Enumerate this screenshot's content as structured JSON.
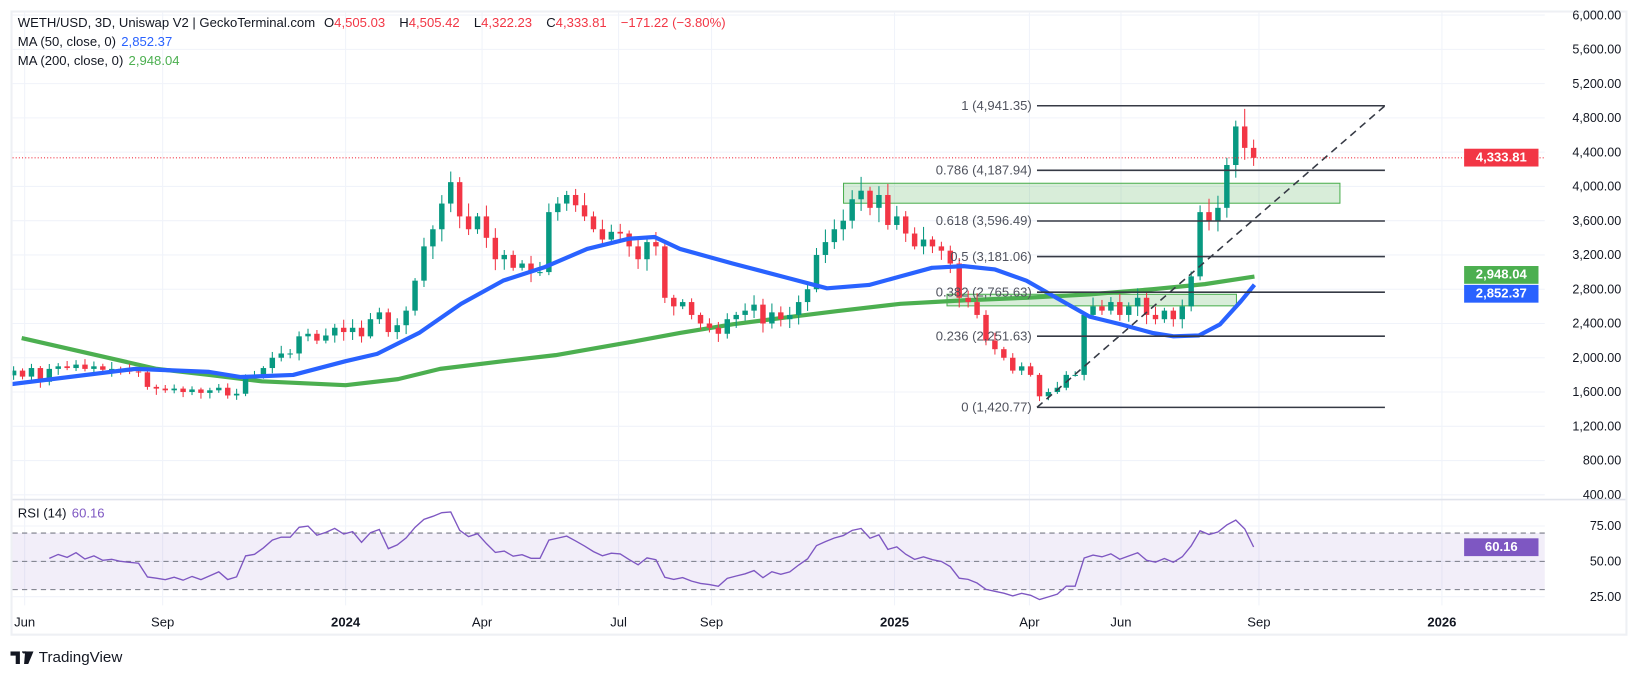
{
  "header": {
    "symbol": "WETH/USD, 3D, Uniswap V2 | GeckoTerminal.com",
    "o_label": "O",
    "o": "4,505.03",
    "h_label": "H",
    "h": "4,505.42",
    "l_label": "L",
    "l": "4,322.23",
    "c_label": "C",
    "c": "4,333.81",
    "change": "−171.22 (−3.80%)"
  },
  "indicators": {
    "ma50": {
      "label": "MA (50, close, 0)",
      "value": "2,852.37"
    },
    "ma200": {
      "label": "MA (200, close, 0)",
      "value": "2,948.04"
    },
    "rsi": {
      "label": "RSI (14)",
      "value": "60.16"
    }
  },
  "branding": {
    "logo_text": "TradingView"
  },
  "colors": {
    "up": "#089981",
    "down": "#f23645",
    "ma50": "#2962ff",
    "ma200": "#4caf50",
    "rsi": "#7e57c2",
    "fib": "#363a45",
    "zone": "#4caf50"
  },
  "chart_data": [
    {
      "type": "candlestick",
      "title": "WETH/USD, 3D, Uniswap V2",
      "y_ticks": [
        "6,000.00",
        "5,600.00",
        "5,200.00",
        "4,800.00",
        "4,400.00",
        "4,000.00",
        "3,600.00",
        "3,200.00",
        "2,800.00",
        "2,400.00",
        "2,000.00",
        "1,600.00",
        "1,200.00",
        "800.00",
        "400.00"
      ],
      "y_tick_values": [
        6000,
        5600,
        5200,
        4800,
        4400,
        4000,
        3600,
        3200,
        2800,
        2400,
        2000,
        1600,
        1200,
        800,
        400
      ],
      "ylim": [
        400,
        6000
      ],
      "x_ticks": [
        {
          "label": "Jun",
          "date": "2023-06-01",
          "bold": false
        },
        {
          "label": "Sep",
          "date": "2023-09-01",
          "bold": false
        },
        {
          "label": "2024",
          "date": "2024-01-01",
          "bold": true
        },
        {
          "label": "Apr",
          "date": "2024-04-01",
          "bold": false
        },
        {
          "label": "Jul",
          "date": "2024-07-01",
          "bold": false
        },
        {
          "label": "Sep",
          "date": "2024-09-01",
          "bold": false
        },
        {
          "label": "2025",
          "date": "2025-01-01",
          "bold": true
        },
        {
          "label": "Apr",
          "date": "2025-04-01",
          "bold": false
        },
        {
          "label": "Jun",
          "date": "2025-06-01",
          "bold": false
        },
        {
          "label": "Sep",
          "date": "2025-09-01",
          "bold": false
        },
        {
          "label": "2026",
          "date": "2026-01-01",
          "bold": true
        }
      ],
      "last_price": 4333.81,
      "last_price_label": "4,333.81",
      "closes": [
        1850,
        1780,
        1880,
        1720,
        1870,
        1900,
        1880,
        1920,
        1870,
        1900,
        1860,
        1870,
        1850,
        1840,
        1830,
        1660,
        1640,
        1620,
        1640,
        1600,
        1630,
        1590,
        1620,
        1650,
        1560,
        1580,
        1780,
        1800,
        1880,
        2000,
        2050,
        2050,
        2250,
        2280,
        2200,
        2260,
        2350,
        2300,
        2350,
        2250,
        2450,
        2530,
        2300,
        2380,
        2550,
        2900,
        3300,
        3500,
        3800,
        4050,
        3650,
        3500,
        3650,
        3400,
        3150,
        3200,
        3050,
        3100,
        3000,
        3000,
        3700,
        3800,
        3900,
        3780,
        3650,
        3500,
        3380,
        3470,
        3450,
        3300,
        3150,
        3350,
        3300,
        2700,
        2600,
        2650,
        2500,
        2400,
        2350,
        2280,
        2450,
        2500,
        2550,
        2620,
        2400,
        2530,
        2450,
        2500,
        2650,
        2800,
        3200,
        3350,
        3500,
        3600,
        3850,
        3950,
        3750,
        3900,
        3550,
        3650,
        3450,
        3300,
        3380,
        3300,
        3250,
        3100,
        2700,
        2650,
        2500,
        2200,
        2100,
        2000,
        1850,
        1900,
        1800,
        1550,
        1600,
        1650,
        1800,
        1800,
        2500,
        2600,
        2550,
        2650,
        2500,
        2600,
        2700,
        2500,
        2450,
        2550,
        2450,
        2600,
        2950,
        3700,
        3600,
        3750,
        4250,
        4700,
        4450,
        4333.81
      ],
      "ma50": [
        [
          "2023-05-22",
          1690
        ],
        [
          "2023-08-14",
          1870
        ],
        [
          "2023-10-02",
          1835
        ],
        [
          "2023-10-23",
          1775
        ],
        [
          "2023-11-27",
          1800
        ],
        [
          "2024-01-01",
          1960
        ],
        [
          "2024-01-22",
          2045
        ],
        [
          "2024-02-19",
          2290
        ],
        [
          "2024-03-18",
          2630
        ],
        [
          "2024-04-15",
          2900
        ],
        [
          "2024-05-13",
          3060
        ],
        [
          "2024-06-10",
          3270
        ],
        [
          "2024-07-08",
          3390
        ],
        [
          "2024-07-25",
          3410
        ],
        [
          "2024-08-11",
          3270
        ],
        [
          "2024-09-15",
          3100
        ],
        [
          "2024-10-20",
          2940
        ],
        [
          "2024-11-17",
          2810
        ],
        [
          "2024-12-15",
          2850
        ],
        [
          "2025-01-05",
          2950
        ],
        [
          "2025-01-26",
          3050
        ],
        [
          "2025-02-16",
          3070
        ],
        [
          "2025-03-09",
          3030
        ],
        [
          "2025-03-30",
          2900
        ],
        [
          "2025-04-20",
          2690
        ],
        [
          "2025-05-11",
          2480
        ],
        [
          "2025-06-01",
          2390
        ],
        [
          "2025-06-22",
          2290
        ],
        [
          "2025-07-06",
          2250
        ],
        [
          "2025-07-23",
          2260
        ],
        [
          "2025-08-06",
          2390
        ],
        [
          "2025-08-20",
          2660
        ],
        [
          "2025-08-29",
          2852.37
        ]
      ],
      "ma200": [
        [
          "2023-05-30",
          2230
        ],
        [
          "2023-08-28",
          1870
        ],
        [
          "2023-10-02",
          1800
        ],
        [
          "2023-11-06",
          1725
        ],
        [
          "2024-01-01",
          1680
        ],
        [
          "2024-02-05",
          1750
        ],
        [
          "2024-03-04",
          1870
        ],
        [
          "2024-04-15",
          1960
        ],
        [
          "2024-05-20",
          2030
        ],
        [
          "2024-07-08",
          2180
        ],
        [
          "2024-08-11",
          2290
        ],
        [
          "2024-09-15",
          2390
        ],
        [
          "2024-10-20",
          2470
        ],
        [
          "2024-11-24",
          2545
        ],
        [
          "2025-01-05",
          2630
        ],
        [
          "2025-02-16",
          2670
        ],
        [
          "2025-03-30",
          2700
        ],
        [
          "2025-05-11",
          2740
        ],
        [
          "2025-06-22",
          2800
        ],
        [
          "2025-07-27",
          2860
        ],
        [
          "2025-08-29",
          2948.04
        ]
      ],
      "fibonacci": {
        "start_date": "2025-04-06",
        "end_date": "2025-11-24",
        "levels": [
          {
            "ratio": "1",
            "price": 4941.35,
            "label": "1 (4,941.35)"
          },
          {
            "ratio": "0.786",
            "price": 4187.94,
            "label": "0.786 (4,187.94)"
          },
          {
            "ratio": "0.618",
            "price": 3596.49,
            "label": "0.618 (3,596.49)"
          },
          {
            "ratio": "0.5",
            "price": 3181.06,
            "label": "0.5 (3,181.06)"
          },
          {
            "ratio": "0.382",
            "price": 2765.63,
            "label": "0.382 (2,765.63)"
          },
          {
            "ratio": "0.236",
            "price": 2251.63,
            "label": "0.236 (2,251.63)"
          },
          {
            "ratio": "0",
            "price": 1420.77,
            "label": "0 (1,420.77)"
          }
        ]
      },
      "zones": [
        {
          "from": "2024-11-28",
          "to": "2025-10-25",
          "top": 4037,
          "bottom": 3804
        },
        {
          "from": "2025-02-05",
          "to": "2025-08-17",
          "top": 2741,
          "bottom": 2606
        }
      ]
    },
    {
      "type": "line",
      "title": "RSI (14)",
      "y_ticks": [
        "75.00",
        "50.00",
        "25.00"
      ],
      "y_tick_values": [
        75,
        50,
        25
      ],
      "bands": [
        70,
        50,
        30
      ],
      "last_value": 60.16,
      "last_value_label": "60.16"
    }
  ]
}
